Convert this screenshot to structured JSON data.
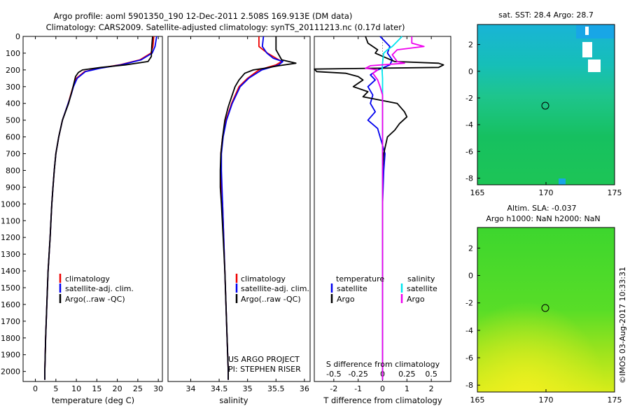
{
  "header": {
    "line1": "Argo profile: aoml 5901350_190 12-Dec-2011 2.508S 169.913E (DM data)",
    "line2": "Climatology: CARS2009. Satellite-adjusted climatology: synTS_20111213.nc (0.17d later)"
  },
  "colors": {
    "red": "#ee0000",
    "blue": "#0000ee",
    "black": "#000000",
    "cyan": "#00e5ee",
    "magenta": "#ee00ee"
  },
  "chart_data": [
    {
      "type": "line",
      "xlabel": "temperature (deg C)",
      "ylim": [
        2060,
        0
      ],
      "xlim": [
        -3,
        31
      ],
      "xticks": [
        0,
        5,
        10,
        15,
        20,
        25,
        30
      ],
      "yticks": [
        0,
        100,
        200,
        300,
        400,
        500,
        600,
        700,
        800,
        900,
        1000,
        1100,
        1200,
        1300,
        1400,
        1500,
        1600,
        1700,
        1800,
        1900,
        2000
      ],
      "legend": [
        "climatology",
        "satellite-adj. clim.",
        "Argo(..raw -QC)"
      ],
      "series": [
        {
          "name": "climatology",
          "color": "red",
          "depth": [
            0,
            60,
            100,
            140,
            170,
            190,
            210,
            250,
            300,
            350,
            400,
            450,
            500,
            600,
            700,
            800,
            900,
            1000,
            1200,
            1400,
            1600,
            1800,
            2000,
            2050
          ],
          "values": [
            28.9,
            28.7,
            28.2,
            25.5,
            20.5,
            15.5,
            12.0,
            10.0,
            9.2,
            8.6,
            8.0,
            7.3,
            6.6,
            5.7,
            5.0,
            4.6,
            4.3,
            4.0,
            3.6,
            3.1,
            2.8,
            2.5,
            2.3,
            2.3
          ]
        },
        {
          "name": "satellite-adj. clim.",
          "color": "blue",
          "depth": [
            0,
            60,
            100,
            140,
            170,
            190,
            210,
            250,
            300,
            350,
            400,
            450,
            500,
            600,
            700,
            800,
            900,
            1000,
            1200,
            1400,
            1600,
            1800,
            2000,
            2050
          ],
          "values": [
            29.6,
            29.2,
            28.5,
            25.8,
            20.8,
            15.8,
            12.2,
            10.2,
            9.3,
            8.7,
            8.0,
            7.3,
            6.6,
            5.7,
            5.0,
            4.6,
            4.3,
            4.0,
            3.6,
            3.1,
            2.8,
            2.5,
            2.3,
            2.3
          ]
        },
        {
          "name": "Argo(..raw -QC)",
          "color": "black",
          "depth": [
            0,
            60,
            120,
            150,
            170,
            185,
            200,
            215,
            240,
            280,
            320,
            400,
            500,
            600,
            700,
            800,
            900,
            1000,
            1200,
            1400,
            1600,
            1800,
            2000,
            2050
          ],
          "values": [
            28.6,
            28.4,
            28.3,
            27.5,
            22.0,
            16.0,
            11.5,
            10.5,
            9.8,
            9.4,
            9.0,
            8.1,
            6.6,
            5.7,
            5.0,
            4.6,
            4.3,
            4.0,
            3.6,
            3.1,
            2.8,
            2.5,
            2.3,
            2.3
          ]
        }
      ]
    },
    {
      "type": "line",
      "xlabel": "salinity",
      "ylim": [
        2060,
        0
      ],
      "xlim": [
        33.6,
        36.1
      ],
      "xticks": [
        34,
        34.5,
        35,
        35.5,
        36
      ],
      "legend": [
        "climatology",
        "satellite-adj. clim.",
        "Argo(..raw -QC)"
      ],
      "series": [
        {
          "name": "climatology",
          "color": "red",
          "depth": [
            0,
            60,
            100,
            130,
            150,
            170,
            200,
            250,
            300,
            400,
            500,
            600,
            700,
            800,
            900,
            1000,
            1200,
            1400,
            1600,
            1800,
            2000,
            2050
          ],
          "values": [
            35.2,
            35.2,
            35.35,
            35.5,
            35.6,
            35.5,
            35.2,
            35.0,
            34.85,
            34.72,
            34.62,
            34.56,
            34.53,
            34.53,
            34.54,
            34.56,
            34.58,
            34.6,
            34.62,
            34.64,
            34.66,
            34.66
          ]
        },
        {
          "name": "satellite-adj. clim.",
          "color": "blue",
          "depth": [
            0,
            60,
            100,
            130,
            150,
            170,
            200,
            250,
            300,
            400,
            500,
            600,
            700,
            800,
            900,
            1000,
            1200,
            1400,
            1600,
            1800,
            2000,
            2050
          ],
          "values": [
            35.28,
            35.26,
            35.34,
            35.45,
            35.62,
            35.55,
            35.25,
            35.02,
            34.87,
            34.73,
            34.63,
            34.57,
            34.54,
            34.54,
            34.55,
            34.56,
            34.58,
            34.6,
            34.62,
            34.64,
            34.66,
            34.66
          ]
        },
        {
          "name": "Argo(..raw -QC)",
          "color": "black",
          "depth": [
            0,
            80,
            140,
            160,
            175,
            190,
            200,
            220,
            260,
            300,
            360,
            420,
            500,
            600,
            700,
            800,
            900,
            1000,
            1200,
            1400,
            1600,
            1800,
            2000,
            2050
          ],
          "values": [
            35.5,
            35.5,
            35.6,
            35.85,
            35.55,
            35.3,
            35.1,
            34.95,
            34.85,
            34.78,
            34.72,
            34.66,
            34.6,
            34.56,
            34.53,
            34.52,
            34.52,
            34.54,
            34.57,
            34.6,
            34.62,
            34.64,
            34.66,
            34.66
          ]
        }
      ]
    },
    {
      "type": "line",
      "xlabel": "T difference from climatology",
      "xlabel_top": "S difference from climatology",
      "ylim": [
        2060,
        0
      ],
      "xlim": [
        -2.8,
        2.8
      ],
      "xticks": [
        -2,
        -1,
        0,
        1,
        2
      ],
      "xticks_S": [
        -0.5,
        -0.25,
        0,
        0.25,
        0.5
      ],
      "legend_headers": [
        "temperature",
        "salinity"
      ],
      "legend": [
        "satellite",
        "Argo",
        "satellite",
        "Argo"
      ],
      "series": [
        {
          "name": "satellite",
          "group": "temperature",
          "color": "blue",
          "depth": [
            0,
            60,
            100,
            140,
            170,
            200,
            230,
            260,
            300,
            350,
            400,
            450,
            500,
            550,
            600,
            700,
            800,
            1000,
            1500,
            2050
          ],
          "values": [
            -0.1,
            0.3,
            0.2,
            0.4,
            0.3,
            -0.2,
            -0.5,
            -0.3,
            -0.6,
            -0.4,
            -0.5,
            -0.3,
            -0.6,
            -0.2,
            -0.1,
            0.1,
            0.05,
            0.0,
            0.0,
            0.0
          ]
        },
        {
          "name": "Argo",
          "group": "temperature",
          "color": "black",
          "depth": [
            0,
            40,
            80,
            100,
            150,
            160,
            170,
            185,
            195,
            210,
            220,
            240,
            260,
            300,
            330,
            360,
            400,
            450,
            480,
            520,
            560,
            600,
            700,
            800,
            1000,
            1500,
            2050
          ],
          "values": [
            -0.7,
            -0.6,
            -0.2,
            -0.3,
            0.5,
            2.3,
            2.5,
            2.3,
            -2.8,
            -2.7,
            -1.5,
            -1.0,
            -0.8,
            -1.2,
            -0.6,
            -0.8,
            0.6,
            0.9,
            1.0,
            0.7,
            0.5,
            0.2,
            0.05,
            0.0,
            0.0,
            0.0,
            0.0
          ]
        },
        {
          "name": "satellite",
          "group": "salinity",
          "color": "cyan",
          "depth": [
            0,
            30,
            60,
            80,
            100,
            130,
            160,
            200,
            250,
            300,
            400,
            600,
            900,
            1200,
            1500,
            1800,
            2050
          ],
          "values": [
            0.8,
            0.6,
            0.4,
            0.2,
            0.05,
            0.02,
            0.0,
            -0.02,
            0.0,
            0.0,
            0.0,
            0.0,
            0.0,
            0.0,
            0.0,
            0.0,
            0.0
          ]
        },
        {
          "name": "Argo",
          "group": "salinity",
          "color": "magenta",
          "depth": [
            0,
            40,
            60,
            80,
            110,
            130,
            150,
            160,
            175,
            190,
            200,
            220,
            260,
            300,
            350,
            400,
            500,
            600,
            800,
            1000,
            1500,
            2050
          ],
          "values": [
            1.2,
            1.2,
            1.7,
            0.6,
            0.4,
            0.5,
            0.6,
            0.9,
            -0.5,
            -0.7,
            -0.2,
            -0.4,
            -0.2,
            -0.1,
            0.0,
            0.0,
            0.0,
            0.0,
            0.0,
            0.0,
            0.0,
            0.0
          ]
        }
      ]
    }
  ],
  "credit": {
    "line1": "US ARGO PROJECT",
    "line2": "PI: STEPHEN RISER"
  },
  "maps": [
    {
      "title": "sat. SST: 28.4 Argo: 28.7",
      "xticks": [
        "165",
        "170",
        "175"
      ],
      "yticks": [
        "2",
        "0",
        "-2",
        "-4",
        "-6",
        "-8"
      ],
      "xlim": [
        165,
        175
      ],
      "ylim": [
        -8.5,
        3.5
      ],
      "marker": [
        169.9,
        -2.5
      ]
    },
    {
      "title1": "Altim. SLA: -0.037",
      "title2": "Argo h1000: NaN h2000: NaN",
      "xticks": [
        "165",
        "170",
        "175"
      ],
      "yticks": [
        "2",
        "0",
        "-2",
        "-4",
        "-6",
        "-8"
      ],
      "xlim": [
        165,
        175
      ],
      "ylim": [
        -8.5,
        3.5
      ],
      "marker": [
        169.9,
        -2.5
      ]
    }
  ],
  "footer": "©IMOS 03-Aug-2017 10:33:31"
}
